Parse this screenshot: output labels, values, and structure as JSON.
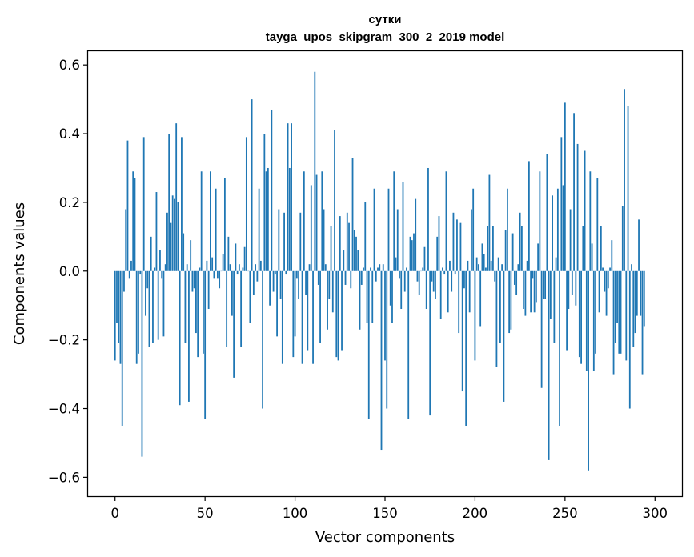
{
  "chart_data": {
    "type": "bar",
    "title": "сутки",
    "subtitle": "tayga_upos_skipgram_300_2_2019 model",
    "xlabel": "Vector components",
    "ylabel": "Components values",
    "xlim": [
      -15,
      315
    ],
    "ylim": [
      -0.655,
      0.64
    ],
    "xticks": [
      0,
      50,
      100,
      150,
      200,
      250,
      300
    ],
    "yticks": [
      -0.6,
      -0.4,
      -0.2,
      0.0,
      0.2,
      0.4,
      0.6
    ],
    "ytick_labels": [
      "−0.6",
      "−0.4",
      "−0.2",
      "0.0",
      "0.2",
      "0.4",
      "0.6"
    ],
    "bar_color": "#1f77b4",
    "values": [
      -0.26,
      -0.15,
      -0.21,
      -0.27,
      -0.45,
      -0.06,
      0.18,
      0.38,
      -0.02,
      0.03,
      0.29,
      0.27,
      -0.27,
      -0.24,
      -0.01,
      -0.54,
      0.39,
      -0.13,
      -0.05,
      -0.22,
      0.1,
      -0.21,
      0.01,
      0.23,
      -0.2,
      0.06,
      -0.02,
      -0.19,
      0.02,
      0.17,
      0.4,
      0.14,
      0.22,
      0.21,
      0.43,
      0.2,
      -0.39,
      0.39,
      0.11,
      -0.21,
      0.02,
      -0.38,
      0.09,
      -0.06,
      -0.05,
      -0.18,
      -0.25,
      0.01,
      0.29,
      -0.24,
      -0.43,
      0.03,
      -0.11,
      0.29,
      0.04,
      -0.02,
      0.24,
      -0.02,
      -0.05,
      0.0,
      0.05,
      0.27,
      -0.22,
      0.1,
      0.02,
      -0.13,
      -0.31,
      0.08,
      -0.01,
      0.02,
      -0.22,
      0.01,
      0.07,
      0.39,
      0.0,
      -0.15,
      0.5,
      -0.07,
      0.02,
      -0.03,
      0.24,
      0.03,
      -0.4,
      0.4,
      0.29,
      0.3,
      -0.1,
      0.47,
      -0.06,
      -0.01,
      -0.19,
      0.18,
      -0.08,
      -0.27,
      0.17,
      -0.01,
      0.43,
      0.3,
      0.43,
      -0.25,
      -0.19,
      -0.02,
      -0.08,
      0.17,
      -0.27,
      0.29,
      -0.07,
      -0.23,
      0.02,
      0.25,
      -0.27,
      0.58,
      0.28,
      -0.04,
      -0.21,
      0.29,
      0.18,
      0.02,
      -0.17,
      -0.08,
      0.13,
      -0.12,
      0.41,
      -0.25,
      -0.26,
      0.16,
      -0.23,
      0.06,
      -0.04,
      0.17,
      0.14,
      -0.05,
      0.33,
      0.12,
      0.1,
      0.06,
      -0.17,
      -0.04,
      0.01,
      0.2,
      -0.15,
      -0.43,
      0.01,
      -0.15,
      0.24,
      -0.03,
      0.01,
      0.02,
      -0.52,
      0.02,
      -0.26,
      -0.4,
      0.24,
      -0.1,
      -0.15,
      0.29,
      0.04,
      0.18,
      -0.02,
      -0.11,
      0.26,
      -0.06,
      0.01,
      -0.43,
      0.1,
      0.09,
      0.11,
      0.21,
      -0.03,
      -0.07,
      0.0,
      0.01,
      0.07,
      -0.11,
      0.3,
      -0.42,
      -0.03,
      -0.06,
      -0.08,
      0.1,
      0.16,
      -0.14,
      0.01,
      -0.01,
      0.29,
      -0.12,
      0.03,
      -0.06,
      0.17,
      -0.01,
      0.15,
      -0.18,
      0.14,
      -0.35,
      -0.05,
      -0.45,
      0.03,
      -0.12,
      0.18,
      0.24,
      -0.26,
      0.04,
      0.02,
      -0.16,
      0.08,
      0.05,
      0.01,
      0.13,
      0.28,
      0.03,
      0.13,
      -0.03,
      -0.28,
      0.04,
      -0.21,
      0.02,
      -0.38,
      0.12,
      0.24,
      -0.18,
      -0.17,
      0.11,
      -0.04,
      -0.07,
      0.02,
      0.17,
      0.13,
      -0.11,
      -0.13,
      0.03,
      0.32,
      -0.12,
      -0.02,
      -0.12,
      -0.09,
      0.08,
      0.29,
      -0.34,
      -0.08,
      -0.08,
      0.34,
      -0.55,
      -0.14,
      0.22,
      -0.21,
      0.04,
      0.24,
      -0.45,
      0.39,
      0.25,
      0.49,
      -0.23,
      -0.11,
      0.18,
      -0.07,
      0.46,
      -0.1,
      0.37,
      -0.25,
      -0.27,
      0.13,
      0.35,
      -0.29,
      -0.58,
      0.29,
      0.08,
      -0.29,
      -0.24,
      0.27,
      -0.12,
      0.13,
      0.01,
      -0.06,
      -0.13,
      -0.05,
      0.01,
      0.09,
      -0.3,
      -0.21,
      -0.15,
      -0.24,
      -0.24,
      0.19,
      0.53,
      -0.26,
      0.48,
      -0.4,
      0.02,
      -0.22,
      -0.18,
      -0.13,
      0.15,
      -0.13,
      -0.3,
      -0.16
    ]
  }
}
